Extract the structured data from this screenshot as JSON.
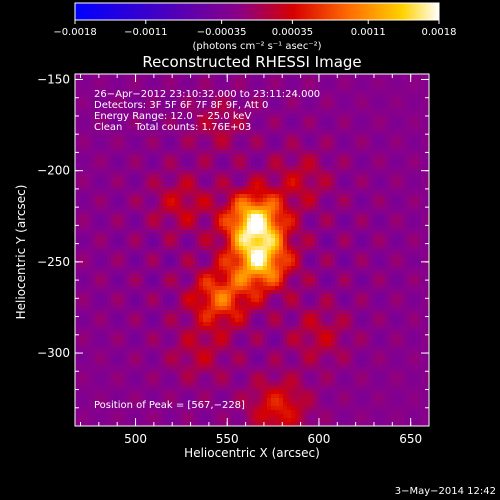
{
  "chart_data": {
    "type": "heatmap",
    "title": "Reconstructed RHESSI Image",
    "xlabel": "Heliocentric X (arcsec)",
    "ylabel": "Heliocentric Y (arcsec)",
    "xlim": [
      467,
      660
    ],
    "ylim": [
      -340,
      -147
    ],
    "x_ticks": [
      500,
      550,
      600,
      650
    ],
    "x_tick_labels": [
      "500",
      "550",
      "600",
      "650"
    ],
    "y_ticks": [
      -150,
      -200,
      -250,
      -300
    ],
    "y_tick_labels": [
      "−150",
      "−200",
      "−250",
      "−300"
    ],
    "colorbar": {
      "range": [
        -0.0018,
        0.0018
      ],
      "ticks": [
        -0.0018,
        -0.0011,
        -0.00035,
        0.00035,
        0.0011,
        0.0018
      ],
      "tick_labels": [
        "−0.0018",
        "−0.0011",
        "−0.00035",
        "0.00035",
        "0.0011",
        "0.0018"
      ],
      "colors": [
        "#0000ff",
        "#3a00cc",
        "#8a0088",
        "#d60000",
        "#ff6a00",
        "#ffd200",
        "#ffffff"
      ],
      "units_label": "(photons cm⁻² s⁻¹ asec⁻²)"
    },
    "annotations": [
      "26−Apr−2012 23:10:32.000 to 23:11:24.000",
      "Detectors: 3F 5F 6F 7F 8F 9F, Att 0",
      "Energy Range: 12.0 − 25.0 keV",
      "Clean    Total counts: 1.76E+03"
    ],
    "peak_label": "Position of Peak = [567,−228]",
    "peak": [
      567,
      -228
    ],
    "sources": [
      {
        "x": 565,
        "y": -228,
        "value": 0.0018
      },
      {
        "x": 568,
        "y": -250,
        "value": 0.00155
      },
      {
        "x": 546,
        "y": -270,
        "value": 0.001
      },
      {
        "x": 525,
        "y": -218,
        "value": 0.00045
      },
      {
        "x": 590,
        "y": -205,
        "value": 0.0004
      },
      {
        "x": 600,
        "y": -290,
        "value": 0.0004
      },
      {
        "x": 578,
        "y": -330,
        "value": 0.0007
      },
      {
        "x": 535,
        "y": -300,
        "value": 0.00035
      },
      {
        "x": 545,
        "y": -175,
        "value": 0.0003
      }
    ]
  },
  "footer": {
    "date": "3−May−2014 12:42"
  }
}
